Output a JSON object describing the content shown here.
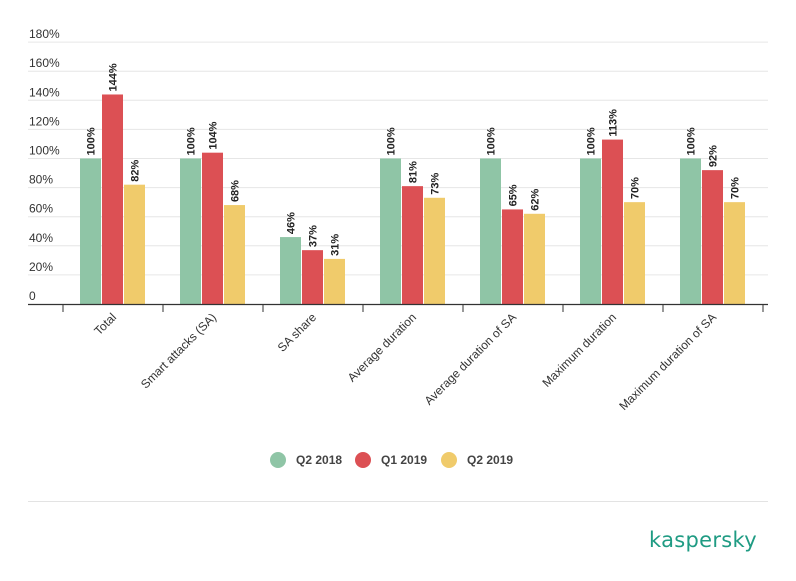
{
  "chart_data": {
    "type": "bar",
    "title": "",
    "xlabel": "",
    "ylabel": "",
    "ylim": [
      0,
      180
    ],
    "yticks": [
      0,
      20,
      40,
      60,
      80,
      100,
      120,
      140,
      160,
      180
    ],
    "ytick_labels": [
      "0",
      "20%",
      "40%",
      "60%",
      "80%",
      "100%",
      "120%",
      "140%",
      "160%",
      "180%"
    ],
    "grid": true,
    "legend_position": "bottom-center",
    "categories": [
      "Total",
      "Smart attacks (SA)",
      "SA share",
      "Average duration",
      "Average duration of SA",
      "Maximum duration",
      "Maximum duration of SA"
    ],
    "series": [
      {
        "name": "Q2 2018",
        "color": "#8fc5a6",
        "values": [
          100,
          100,
          46,
          100,
          100,
          100,
          100
        ],
        "labels": [
          "100%",
          "100%",
          "46%",
          "100%",
          "100%",
          "100%",
          "100%"
        ]
      },
      {
        "name": "Q1 2019",
        "color": "#dc5054",
        "values": [
          144,
          104,
          37,
          81,
          65,
          113,
          92
        ],
        "labels": [
          "144%",
          "104%",
          "37%",
          "81%",
          "65%",
          "113%",
          "92%"
        ]
      },
      {
        "name": "Q2 2019",
        "color": "#f0cb6b",
        "values": [
          82,
          68,
          31,
          73,
          62,
          70,
          70
        ],
        "labels": [
          "82%",
          "68%",
          "31%",
          "73%",
          "62%",
          "70%",
          "70%"
        ]
      }
    ]
  },
  "brand": {
    "logo_text": "kaspersky",
    "logo_color": "#1f9b83"
  }
}
